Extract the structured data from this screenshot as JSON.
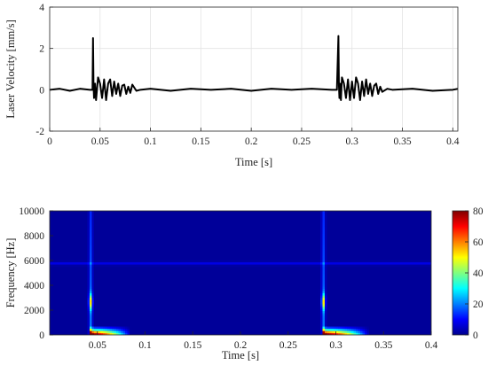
{
  "chart_data": [
    {
      "type": "line",
      "title": "",
      "xlabel": "Time [s]",
      "ylabel": "Laser Velocity [mm/s]",
      "xlim": [
        0,
        0.405
      ],
      "ylim": [
        -2,
        4
      ],
      "grid": true,
      "line_color": "#000000",
      "x_ticks": [
        0,
        0.05,
        0.1,
        0.15,
        0.2,
        0.25,
        0.3,
        0.35,
        0.4
      ],
      "x_tick_labels": [
        "0",
        "0.05",
        "0.1",
        "0.15",
        "0.2",
        "0.25",
        "0.3",
        "0.35",
        "0.4"
      ],
      "y_ticks": [
        -2,
        0,
        2,
        4
      ],
      "y_tick_labels": [
        "-2",
        "0",
        "2",
        "4"
      ],
      "series": [
        {
          "x": [
            0,
            0.01,
            0.02,
            0.03,
            0.04,
            0.0425,
            0.043,
            0.0435,
            0.044,
            0.045,
            0.046,
            0.048,
            0.05,
            0.052,
            0.054,
            0.056,
            0.058,
            0.06,
            0.062,
            0.064,
            0.066,
            0.068,
            0.07,
            0.072,
            0.074,
            0.076,
            0.078,
            0.08,
            0.082,
            0.084,
            0.086,
            0.09,
            0.1,
            0.12,
            0.14,
            0.16,
            0.18,
            0.2,
            0.22,
            0.24,
            0.26,
            0.28,
            0.285,
            0.2865,
            0.287,
            0.2875,
            0.288,
            0.289,
            0.29,
            0.292,
            0.294,
            0.296,
            0.298,
            0.3,
            0.302,
            0.304,
            0.306,
            0.308,
            0.31,
            0.312,
            0.314,
            0.316,
            0.318,
            0.32,
            0.322,
            0.324,
            0.326,
            0.328,
            0.33,
            0.335,
            0.34,
            0.36,
            0.38,
            0.4,
            0.405
          ],
          "y": [
            0,
            0.05,
            -0.05,
            0.05,
            0,
            0,
            2.5,
            0.2,
            -0.4,
            0.3,
            -0.5,
            0.6,
            0.3,
            -0.4,
            0.5,
            -0.5,
            0.3,
            0.5,
            -0.3,
            0.4,
            -0.2,
            0.3,
            -0.3,
            0.2,
            0.25,
            -0.2,
            0.15,
            -0.15,
            0.25,
            0.1,
            -0.05,
            0,
            0.05,
            -0.05,
            0.05,
            0,
            0.05,
            -0.05,
            0.05,
            0,
            0.05,
            0,
            0,
            2.6,
            0.2,
            -0.4,
            0.3,
            -0.5,
            0.6,
            0.3,
            -0.4,
            0.5,
            -0.5,
            0.4,
            -0.4,
            0.6,
            0.3,
            -0.5,
            0.4,
            -0.3,
            0.5,
            -0.2,
            0.3,
            -0.3,
            0.2,
            0.3,
            -0.2,
            0.15,
            -0.1,
            0.05,
            0,
            0.05,
            -0.05,
            0,
            0.05
          ]
        }
      ]
    },
    {
      "type": "heatmap",
      "title": "",
      "xlabel": "Time [s]",
      "ylabel": "Frequency [Hz]",
      "xlim": [
        0,
        0.4
      ],
      "ylim": [
        0,
        10000
      ],
      "x_ticks": [
        0.05,
        0.1,
        0.15,
        0.2,
        0.25,
        0.3,
        0.35,
        0.4
      ],
      "x_tick_labels": [
        "0.05",
        "0.1",
        "0.15",
        "0.2",
        "0.25",
        "0.3",
        "0.35",
        "0.4"
      ],
      "y_ticks": [
        0,
        2000,
        4000,
        6000,
        8000,
        10000
      ],
      "y_tick_labels": [
        "0",
        "2000",
        "4000",
        "6000",
        "8000",
        "10000"
      ],
      "colormap": "jet",
      "clim": [
        0,
        80
      ],
      "colorbar_ticks": [
        0,
        20,
        40,
        60,
        80
      ],
      "colorbar_tick_labels": [
        "0",
        "20",
        "40",
        "60",
        "80"
      ],
      "background_level": 2,
      "events": [
        {
          "time": 0.043,
          "vertical_streak": {
            "level": 18,
            "freq_max": 10000
          },
          "bright_band": {
            "freq_center": 2700,
            "freq_span": 600,
            "level": 35
          },
          "low_freq_tail": {
            "t_end": 0.085,
            "freq_max": 500,
            "peak_level": 80
          }
        },
        {
          "time": 0.287,
          "vertical_streak": {
            "level": 18,
            "freq_max": 10000
          },
          "bright_band": {
            "freq_center": 2700,
            "freq_span": 600,
            "level": 35
          },
          "low_freq_tail": {
            "t_end": 0.335,
            "freq_max": 500,
            "peak_level": 80
          }
        }
      ],
      "horizontal_bands": [
        {
          "freq": 5800,
          "level": 6
        }
      ]
    }
  ]
}
